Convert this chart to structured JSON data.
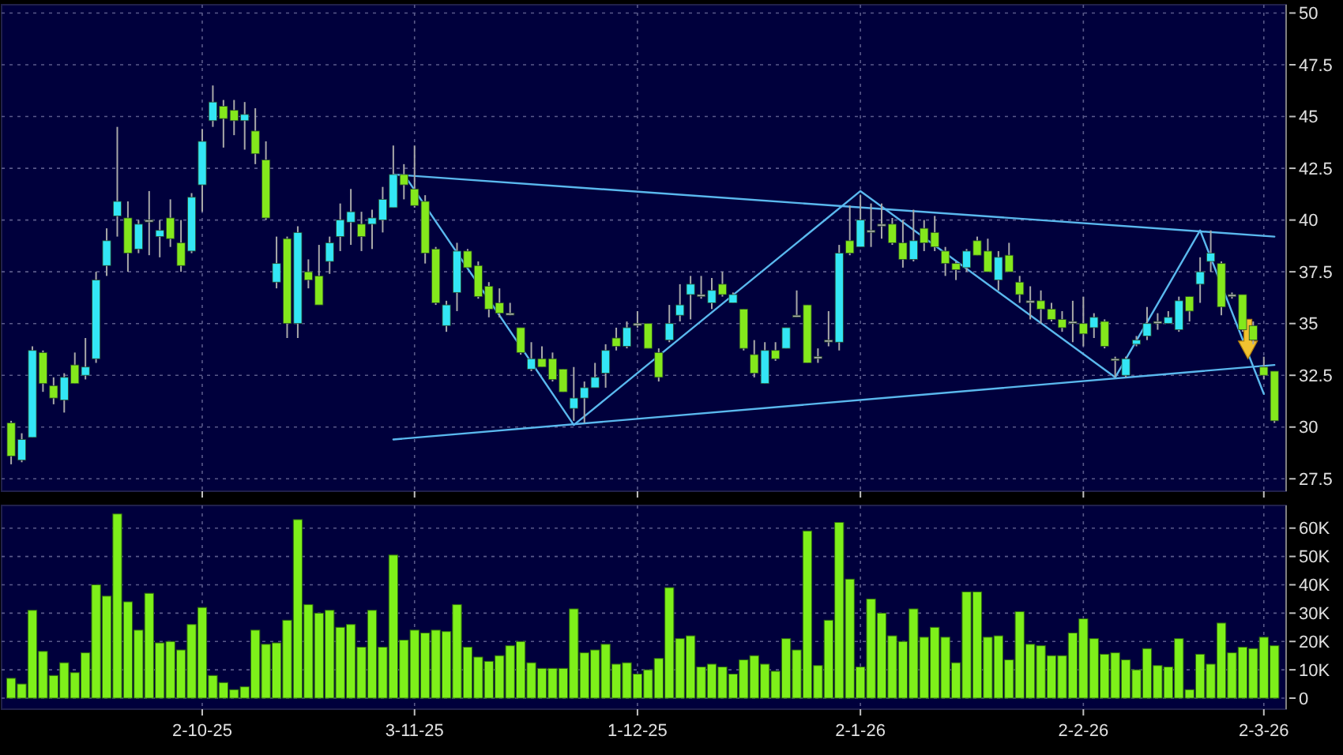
{
  "chart_data": [
    {
      "type": "candlestick",
      "categories": [
        null,
        null,
        null,
        null,
        null,
        null,
        null,
        null,
        null,
        null,
        null,
        null,
        null,
        null,
        null,
        null,
        null,
        null,
        null,
        null,
        null,
        null,
        null,
        null,
        null,
        null,
        null,
        null,
        null,
        null,
        null,
        null,
        null,
        null,
        null,
        null,
        null,
        null,
        null,
        null,
        null,
        null,
        null,
        null,
        null,
        null,
        null,
        null,
        null,
        null,
        null,
        null,
        null,
        null,
        null,
        null,
        null,
        null,
        null,
        null,
        null,
        null,
        null,
        null,
        null,
        null,
        null,
        null,
        null,
        null,
        null,
        null,
        null,
        null,
        null,
        null,
        null,
        null,
        null,
        null,
        null,
        null,
        null,
        null,
        null,
        null,
        null,
        null,
        null,
        null,
        null,
        null,
        null,
        null,
        null,
        null,
        null,
        null,
        null,
        null,
        null,
        null,
        null,
        null,
        null,
        null,
        null,
        null,
        null,
        null,
        null,
        null,
        null,
        null,
        null,
        null,
        null,
        null,
        null,
        null
      ],
      "ohlc": [
        [
          30.2,
          30.3,
          28.2,
          28.6
        ],
        [
          28.4,
          29.7,
          28.3,
          29.4
        ],
        [
          29.5,
          33.9,
          29.5,
          33.7
        ],
        [
          33.6,
          33.7,
          31.7,
          32.1
        ],
        [
          32.0,
          32.4,
          31.1,
          31.4
        ],
        [
          31.3,
          32.6,
          30.7,
          32.4
        ],
        [
          33.0,
          33.6,
          32.1,
          32.1
        ],
        [
          32.5,
          34.3,
          32.3,
          32.9
        ],
        [
          33.3,
          37.5,
          33.1,
          37.1
        ],
        [
          37.8,
          39.6,
          37.3,
          39.0
        ],
        [
          40.2,
          44.5,
          39.2,
          40.9
        ],
        [
          40.1,
          40.9,
          37.5,
          38.4
        ],
        [
          38.6,
          40.0,
          38.4,
          39.8
        ],
        [
          40.0,
          41.4,
          38.3,
          40.0
        ],
        [
          39.2,
          40.0,
          38.2,
          39.5
        ],
        [
          40.1,
          41.0,
          38.7,
          39.1
        ],
        [
          38.9,
          40.0,
          37.5,
          37.8
        ],
        [
          38.5,
          41.3,
          38.4,
          41.1
        ],
        [
          41.7,
          44.4,
          40.4,
          43.8
        ],
        [
          44.8,
          46.5,
          44.5,
          45.7
        ],
        [
          45.5,
          45.8,
          43.5,
          44.9
        ],
        [
          45.3,
          45.8,
          44.1,
          44.8
        ],
        [
          44.8,
          45.7,
          43.4,
          45.1
        ],
        [
          44.3,
          45.4,
          42.7,
          43.2
        ],
        [
          42.9,
          43.8,
          40.0,
          40.1
        ],
        [
          37.0,
          39.2,
          36.7,
          37.9
        ],
        [
          39.1,
          39.2,
          34.3,
          35.0
        ],
        [
          35.0,
          39.7,
          34.3,
          39.4
        ],
        [
          37.5,
          38.1,
          36.7,
          37.1
        ],
        [
          37.3,
          38.8,
          35.9,
          35.9
        ],
        [
          38.0,
          39.2,
          37.4,
          38.9
        ],
        [
          39.2,
          40.8,
          38.5,
          40.0
        ],
        [
          39.9,
          41.5,
          38.8,
          40.4
        ],
        [
          39.8,
          40.4,
          38.5,
          39.2
        ],
        [
          39.8,
          40.5,
          38.6,
          40.1
        ],
        [
          40.0,
          41.6,
          39.4,
          41.0
        ],
        [
          40.6,
          43.6,
          40.6,
          42.2
        ],
        [
          42.2,
          42.7,
          41.0,
          41.7
        ],
        [
          41.5,
          43.6,
          40.6,
          40.7
        ],
        [
          40.9,
          41.2,
          37.9,
          38.4
        ],
        [
          38.6,
          38.7,
          35.9,
          36.0
        ],
        [
          34.9,
          36.1,
          34.6,
          35.9
        ],
        [
          36.5,
          38.9,
          35.6,
          38.5
        ],
        [
          38.5,
          38.6,
          37.7,
          37.7
        ],
        [
          37.8,
          38.0,
          36.2,
          36.3
        ],
        [
          36.8,
          37.0,
          35.3,
          35.7
        ],
        [
          36.0,
          36.7,
          35.3,
          35.5
        ],
        [
          35.5,
          36.0,
          35.4,
          35.5
        ],
        [
          34.8,
          34.8,
          33.5,
          33.6
        ],
        [
          32.8,
          34.1,
          32.7,
          33.3
        ],
        [
          33.3,
          33.9,
          32.9,
          32.9
        ],
        [
          33.3,
          33.6,
          32.2,
          32.3
        ],
        [
          32.8,
          32.8,
          31.7,
          31.7
        ],
        [
          30.9,
          32.9,
          30.3,
          31.4
        ],
        [
          31.4,
          32.2,
          30.2,
          31.9
        ],
        [
          31.9,
          33.1,
          31.9,
          32.4
        ],
        [
          32.6,
          34.0,
          31.9,
          33.7
        ],
        [
          34.3,
          34.8,
          33.7,
          33.9
        ],
        [
          33.9,
          35.1,
          33.8,
          34.8
        ],
        [
          35.0,
          35.6,
          34.8,
          35.0
        ],
        [
          35.0,
          35.0,
          33.8,
          33.8
        ],
        [
          33.6,
          33.8,
          32.2,
          32.4
        ],
        [
          34.2,
          35.9,
          34.1,
          35.0
        ],
        [
          35.4,
          36.9,
          35.1,
          35.9
        ],
        [
          36.4,
          37.3,
          35.2,
          36.9
        ],
        [
          36.4,
          37.3,
          36.2,
          36.4
        ],
        [
          36.0,
          37.2,
          35.7,
          36.6
        ],
        [
          36.9,
          37.5,
          36.3,
          36.4
        ],
        [
          36.0,
          36.5,
          36.0,
          36.4
        ],
        [
          35.7,
          35.7,
          33.7,
          33.8
        ],
        [
          33.5,
          34.2,
          32.4,
          32.6
        ],
        [
          32.1,
          34.1,
          32.1,
          33.7
        ],
        [
          33.7,
          34.1,
          33.2,
          33.3
        ],
        [
          33.8,
          34.8,
          33.8,
          34.8
        ],
        [
          35.4,
          36.6,
          35.3,
          35.4
        ],
        [
          35.9,
          35.9,
          33.1,
          33.1
        ],
        [
          33.4,
          33.8,
          33.1,
          33.4
        ],
        [
          34.2,
          35.6,
          33.9,
          34.2
        ],
        [
          34.1,
          38.8,
          33.7,
          38.4
        ],
        [
          39.0,
          40.7,
          38.3,
          38.4
        ],
        [
          38.7,
          41.2,
          38.7,
          40.0
        ],
        [
          39.5,
          40.8,
          38.7,
          39.5
        ],
        [
          39.8,
          40.8,
          39.1,
          39.8
        ],
        [
          39.8,
          40.1,
          38.8,
          38.9
        ],
        [
          38.9,
          40.0,
          37.7,
          38.1
        ],
        [
          38.1,
          40.5,
          38.0,
          39.0
        ],
        [
          39.6,
          40.0,
          38.5,
          38.9
        ],
        [
          39.4,
          40.2,
          38.5,
          38.7
        ],
        [
          38.5,
          38.7,
          37.3,
          37.9
        ],
        [
          37.9,
          38.0,
          37.1,
          37.6
        ],
        [
          37.7,
          38.6,
          37.5,
          38.5
        ],
        [
          39.0,
          39.2,
          38.3,
          38.3
        ],
        [
          38.5,
          39.1,
          37.5,
          37.5
        ],
        [
          37.1,
          38.5,
          36.6,
          38.2
        ],
        [
          38.3,
          38.9,
          37.5,
          37.5
        ],
        [
          37.0,
          37.3,
          36.0,
          36.4
        ],
        [
          36.1,
          36.8,
          35.2,
          36.1
        ],
        [
          36.1,
          36.6,
          35.0,
          35.7
        ],
        [
          35.7,
          36.0,
          35.1,
          35.2
        ],
        [
          35.2,
          35.6,
          34.6,
          34.8
        ],
        [
          35.1,
          36.1,
          34.1,
          35.1
        ],
        [
          35.0,
          36.3,
          33.9,
          34.5
        ],
        [
          34.8,
          35.5,
          34.3,
          35.3
        ],
        [
          35.1,
          35.2,
          33.8,
          33.9
        ],
        [
          33.3,
          33.4,
          32.4,
          33.3
        ],
        [
          32.5,
          33.4,
          32.4,
          33.3
        ],
        [
          34.0,
          34.4,
          33.9,
          34.2
        ],
        [
          34.4,
          35.8,
          34.2,
          35.0
        ],
        [
          35.1,
          35.5,
          34.7,
          35.1
        ],
        [
          35.0,
          35.6,
          35.0,
          35.3
        ],
        [
          34.7,
          36.3,
          34.6,
          36.1
        ],
        [
          36.3,
          36.3,
          35.1,
          35.6
        ],
        [
          36.9,
          38.2,
          36.0,
          37.5
        ],
        [
          38.0,
          39.5,
          37.5,
          38.4
        ],
        [
          37.9,
          38.0,
          35.4,
          35.8
        ],
        [
          36.4,
          36.5,
          36.2,
          36.4
        ],
        [
          36.4,
          36.4,
          34.6,
          34.7
        ],
        [
          34.9,
          35.1,
          34.0,
          34.2
        ],
        [
          32.9,
          33.4,
          32.3,
          32.5
        ],
        [
          32.7,
          32.7,
          30.2,
          30.3
        ]
      ],
      "colors": [
        "#84e81c",
        "#33e6f5",
        "#33e6f5",
        "#84e81c",
        "#84e81c",
        "#33e6f5",
        "#84e81c",
        "#33e6f5",
        "#33e6f5",
        "#33e6f5",
        "#33e6f5",
        "#84e81c",
        "#33e6f5",
        "#b0b0b0",
        "#33e6f5",
        "#84e81c",
        "#84e81c",
        "#33e6f5",
        "#33e6f5",
        "#33e6f5",
        "#84e81c",
        "#84e81c",
        "#33e6f5",
        "#84e81c",
        "#84e81c",
        "#33e6f5",
        "#84e81c",
        "#33e6f5",
        "#84e81c",
        "#84e81c",
        "#33e6f5",
        "#33e6f5",
        "#33e6f5",
        "#84e81c",
        "#33e6f5",
        "#33e6f5",
        "#33e6f5",
        "#84e81c",
        "#84e81c",
        "#84e81c",
        "#84e81c",
        "#33e6f5",
        "#33e6f5",
        "#84e81c",
        "#84e81c",
        "#84e81c",
        "#84e81c",
        "#b0b0b0",
        "#84e81c",
        "#33e6f5",
        "#84e81c",
        "#84e81c",
        "#84e81c",
        "#33e6f5",
        "#33e6f5",
        "#33e6f5",
        "#33e6f5",
        "#84e81c",
        "#33e6f5",
        "#b0b0b0",
        "#84e81c",
        "#84e81c",
        "#33e6f5",
        "#33e6f5",
        "#33e6f5",
        "#b0b0b0",
        "#33e6f5",
        "#84e81c",
        "#33e6f5",
        "#84e81c",
        "#84e81c",
        "#33e6f5",
        "#84e81c",
        "#33e6f5",
        "#b0b0b0",
        "#84e81c",
        "#b0b0b0",
        "#b0b0b0",
        "#33e6f5",
        "#84e81c",
        "#33e6f5",
        "#b0b0b0",
        "#b0b0b0",
        "#84e81c",
        "#84e81c",
        "#33e6f5",
        "#84e81c",
        "#84e81c",
        "#84e81c",
        "#84e81c",
        "#33e6f5",
        "#84e81c",
        "#84e81c",
        "#33e6f5",
        "#84e81c",
        "#84e81c",
        "#b0b0b0",
        "#84e81c",
        "#84e81c",
        "#84e81c",
        "#b0b0b0",
        "#84e81c",
        "#33e6f5",
        "#84e81c",
        "#b0b0b0",
        "#33e6f5",
        "#33e6f5",
        "#33e6f5",
        "#b0b0b0",
        "#33e6f5",
        "#33e6f5",
        "#84e81c",
        "#33e6f5",
        "#33e6f5",
        "#84e81c",
        "#b0b0b0",
        "#84e81c",
        "#84e81c",
        "#84e81c",
        "#84e81c"
      ],
      "series": [
        {
          "type": "line",
          "values": [
            null,
            null,
            null,
            null,
            null,
            null,
            null,
            null,
            null,
            null,
            null,
            null,
            null,
            null,
            null,
            null,
            null,
            null,
            null,
            null,
            null,
            null,
            null,
            null,
            null,
            null,
            null,
            null,
            null,
            null,
            null,
            null,
            null,
            null,
            null,
            null,
            42.2,
            null,
            null,
            null,
            null,
            null,
            null,
            null,
            null,
            null,
            null,
            null,
            null,
            null,
            null,
            null,
            null,
            null,
            null,
            null,
            null,
            null,
            null,
            null,
            null,
            null,
            null,
            null,
            null,
            null,
            null,
            null,
            null,
            null,
            null,
            null,
            null,
            null,
            null,
            null,
            null,
            null,
            null,
            null,
            null,
            null,
            null,
            null,
            null,
            null,
            null,
            null,
            null,
            null,
            null,
            null,
            null,
            null,
            null,
            null,
            null,
            null,
            null,
            null,
            null,
            null,
            null,
            null,
            null,
            null,
            null,
            null,
            null,
            null,
            null,
            null,
            null,
            null,
            null,
            null,
            null,
            null,
            null,
            39.2
          ],
          "color": "#5ab8ee"
        },
        {
          "type": "line",
          "values": [
            null,
            null,
            null,
            null,
            null,
            null,
            null,
            null,
            null,
            null,
            null,
            null,
            null,
            null,
            null,
            null,
            null,
            null,
            null,
            null,
            null,
            null,
            null,
            null,
            null,
            null,
            null,
            null,
            null,
            null,
            null,
            null,
            null,
            null,
            null,
            null,
            29.4,
            null,
            null,
            null,
            null,
            null,
            null,
            null,
            null,
            null,
            null,
            null,
            null,
            null,
            null,
            null,
            null,
            null,
            null,
            null,
            null,
            null,
            null,
            null,
            null,
            null,
            null,
            null,
            null,
            null,
            null,
            null,
            null,
            null,
            null,
            null,
            null,
            null,
            null,
            null,
            null,
            null,
            null,
            null,
            null,
            null,
            null,
            null,
            null,
            null,
            null,
            null,
            null,
            null,
            null,
            null,
            null,
            null,
            null,
            null,
            null,
            null,
            null,
            null,
            null,
            null,
            null,
            null,
            null,
            null,
            null,
            null,
            null,
            null,
            null,
            null,
            null,
            null,
            null,
            null,
            null,
            null,
            null,
            33.0
          ],
          "color": "#5ab8ee"
        },
        {
          "type": "line",
          "values": [
            null,
            null,
            null,
            null,
            null,
            null,
            null,
            null,
            null,
            null,
            null,
            null,
            null,
            null,
            null,
            null,
            null,
            null,
            null,
            null,
            null,
            null,
            null,
            null,
            null,
            null,
            null,
            null,
            null,
            null,
            null,
            null,
            null,
            null,
            null,
            null,
            null,
            42.2,
            null,
            null,
            null,
            null,
            null,
            null,
            null,
            null,
            null,
            null,
            null,
            null,
            null,
            null,
            null,
            30.1,
            null,
            null,
            null,
            null,
            null,
            null,
            null,
            null,
            null,
            null,
            null,
            null,
            null,
            null,
            null,
            null,
            null,
            null,
            null,
            null,
            null,
            null,
            null,
            null,
            null,
            null,
            41.4,
            null,
            null,
            null,
            null,
            null,
            null,
            null,
            null,
            null,
            null,
            null,
            null,
            null,
            null,
            null,
            null,
            null,
            null,
            null,
            null,
            null,
            null,
            null,
            32.4,
            null,
            null,
            null,
            null,
            null,
            null,
            null,
            39.5,
            null,
            null,
            null,
            null,
            null,
            31.6,
            null
          ],
          "color": "#5ab8ee"
        }
      ],
      "ylim": [
        26.9,
        50.4
      ],
      "yticks": [
        27.5,
        30,
        32.5,
        35,
        37.5,
        40,
        42.5,
        45,
        47.5,
        50
      ],
      "grid": true
    },
    {
      "type": "bar",
      "categories": [
        null,
        null,
        null,
        null,
        null,
        null,
        null,
        null,
        null,
        null,
        null,
        null,
        null,
        null,
        null,
        null,
        null,
        null,
        "2-10-25",
        null,
        null,
        null,
        null,
        null,
        null,
        null,
        null,
        null,
        null,
        null,
        null,
        null,
        null,
        null,
        null,
        null,
        null,
        null,
        "3-11-25",
        null,
        null,
        null,
        null,
        null,
        null,
        null,
        null,
        null,
        null,
        null,
        null,
        null,
        null,
        null,
        null,
        null,
        null,
        null,
        null,
        "1-12-25",
        null,
        null,
        null,
        null,
        null,
        null,
        null,
        null,
        null,
        null,
        null,
        null,
        null,
        null,
        null,
        null,
        null,
        null,
        null,
        null,
        "2-1-26",
        null,
        null,
        null,
        null,
        null,
        null,
        null,
        null,
        null,
        null,
        null,
        null,
        null,
        null,
        null,
        null,
        null,
        null,
        null,
        null,
        "2-2-26",
        null,
        null,
        null,
        null,
        null,
        null,
        null,
        null,
        null,
        null,
        null,
        null,
        null,
        null,
        null,
        null,
        "2-3-26",
        null
      ],
      "values": [
        7000,
        5000,
        31000,
        16500,
        8000,
        12500,
        9000,
        16000,
        40000,
        36000,
        65000,
        34000,
        24000,
        37000,
        19500,
        20000,
        17000,
        26000,
        32000,
        8000,
        5500,
        3000,
        4000,
        24000,
        19000,
        19500,
        27500,
        63000,
        33000,
        30000,
        31000,
        25000,
        26000,
        18000,
        31000,
        18000,
        50500,
        20500,
        24000,
        23000,
        24000,
        23500,
        33000,
        18000,
        14500,
        13000,
        15000,
        18500,
        20000,
        12500,
        10500,
        10500,
        10500,
        31500,
        16000,
        17000,
        19000,
        12000,
        12500,
        8500,
        10000,
        14000,
        39000,
        21000,
        22000,
        11000,
        12000,
        11000,
        8500,
        13500,
        15000,
        12000,
        9500,
        21000,
        17000,
        59000,
        11500,
        27500,
        62000,
        42000,
        11000,
        35000,
        30000,
        22000,
        20000,
        31500,
        21500,
        25000,
        21500,
        12500,
        37500,
        37500,
        21500,
        22000,
        13500,
        30500,
        19000,
        18500,
        15000,
        15000,
        23000,
        28000,
        21000,
        15500,
        16000,
        13500,
        10000,
        17500,
        11500,
        11000,
        21000,
        3000,
        15500,
        12000,
        26500,
        16000,
        18000,
        17500,
        21500,
        18500
      ],
      "color": "#7ef01a",
      "ylim": [
        -3900,
        68000
      ],
      "yticks": [
        0,
        {
          "value": 10000,
          "label": "10K"
        },
        {
          "value": 20000,
          "label": "20K"
        },
        {
          "value": 30000,
          "label": "30K"
        },
        {
          "value": 40000,
          "label": "40K"
        },
        {
          "value": 50000,
          "label": "50K"
        },
        {
          "value": 60000,
          "label": "60K"
        }
      ],
      "grid": true
    }
  ]
}
